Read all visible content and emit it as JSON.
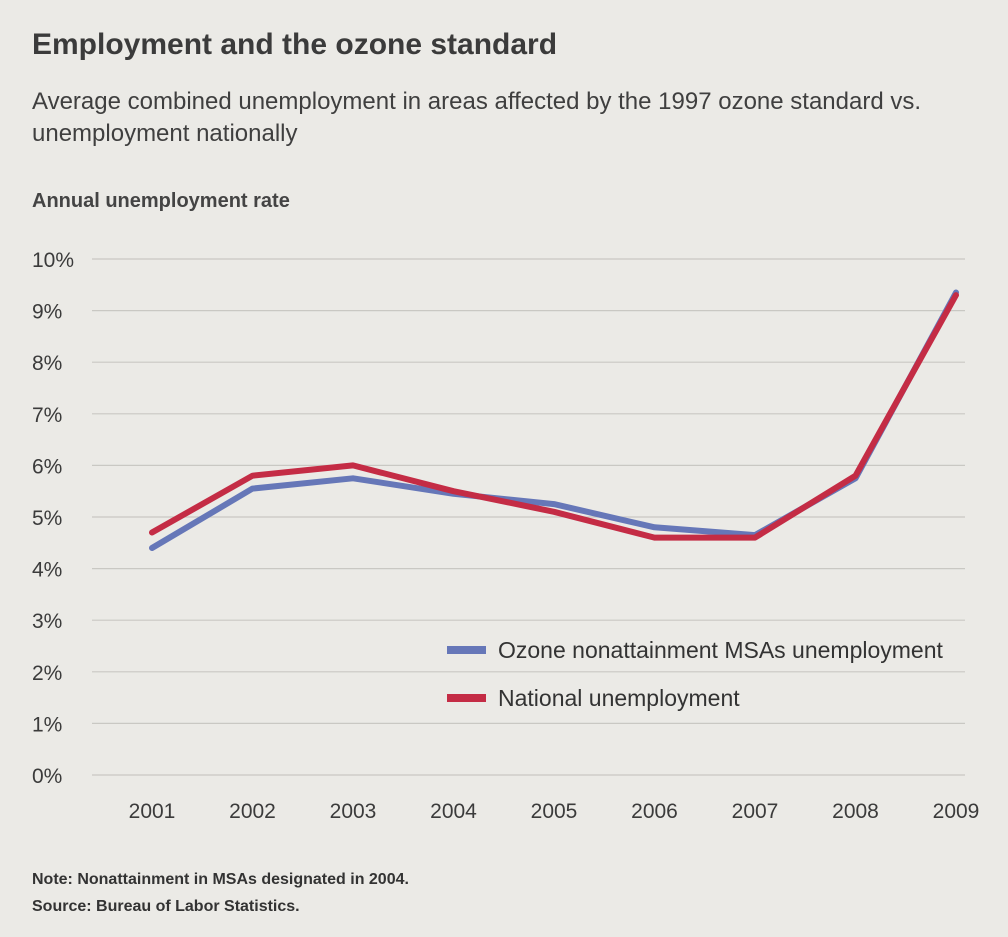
{
  "chart_data": {
    "type": "line",
    "title": "Employment and the ozone standard",
    "subtitle": "Average combined unemployment in areas affected by the 1997 ozone standard vs. unemployment nationally",
    "ylabel": "Annual unemployment rate",
    "xlabel": "",
    "x": [
      "2001",
      "2002",
      "2003",
      "2004",
      "2005",
      "2006",
      "2007",
      "2008",
      "2009"
    ],
    "yticks": [
      "0%",
      "1%",
      "2%",
      "3%",
      "4%",
      "5%",
      "6%",
      "7%",
      "8%",
      "9%",
      "10%"
    ],
    "ylim": [
      0,
      10
    ],
    "grid": true,
    "legend_position": "bottom-right",
    "series": [
      {
        "name": "Ozone nonattainment MSAs unemployment",
        "color": "#6677b8",
        "values": [
          4.4,
          5.55,
          5.75,
          5.45,
          5.25,
          4.8,
          4.65,
          5.75,
          9.35
        ]
      },
      {
        "name": "National unemployment",
        "color": "#c42c45",
        "values": [
          4.7,
          5.8,
          6.0,
          5.5,
          5.1,
          4.6,
          4.6,
          5.8,
          9.3
        ]
      }
    ],
    "notes": [
      "Note: Nonattainment in MSAs designated in 2004.",
      "Source: Bureau of Labor Statistics."
    ]
  }
}
